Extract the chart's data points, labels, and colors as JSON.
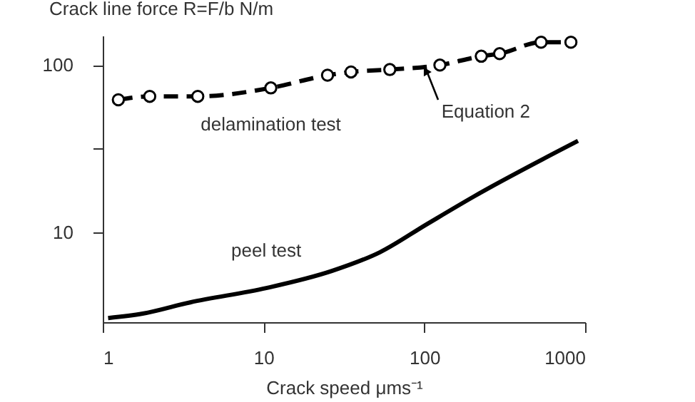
{
  "chart_data": {
    "type": "line",
    "ylabel": "Crack line force R=F/b N/m",
    "xlabel": "Crack speed μms⁻¹",
    "log": "xy",
    "xlim": [
      1,
      1000
    ],
    "xticks": [
      1,
      10,
      100,
      1000
    ],
    "ylim": [
      2.9,
      150
    ],
    "yticks": [
      10,
      {
        "value": 31.6,
        "label": null
      },
      100
    ],
    "grid": false,
    "series": [
      {
        "name": "delamination test",
        "color": "#000000",
        "marker": "circle",
        "line_style": "dashed",
        "x": [
          1.25,
          1.96,
          3.9,
          11.1,
          25,
          35,
          61,
          125,
          226,
          294,
          532,
          816
        ],
        "values": [
          62,
          65,
          65,
          73,
          87,
          91,
          94,
          100,
          113,
          117,
          137,
          137
        ]
      },
      {
        "name": "peel test",
        "color": "#000000",
        "marker": "none",
        "line_style": "solid",
        "x": [
          1.08,
          1.77,
          3.5,
          10.4,
          26.6,
          53,
          104,
          204,
          903
        ],
        "values": [
          3.07,
          3.26,
          3.81,
          4.64,
          5.87,
          7.6,
          11.2,
          16.4,
          35.2
        ]
      }
    ],
    "annotations": [
      {
        "text": "Equation 2",
        "x": 100,
        "y": 100
      }
    ]
  }
}
